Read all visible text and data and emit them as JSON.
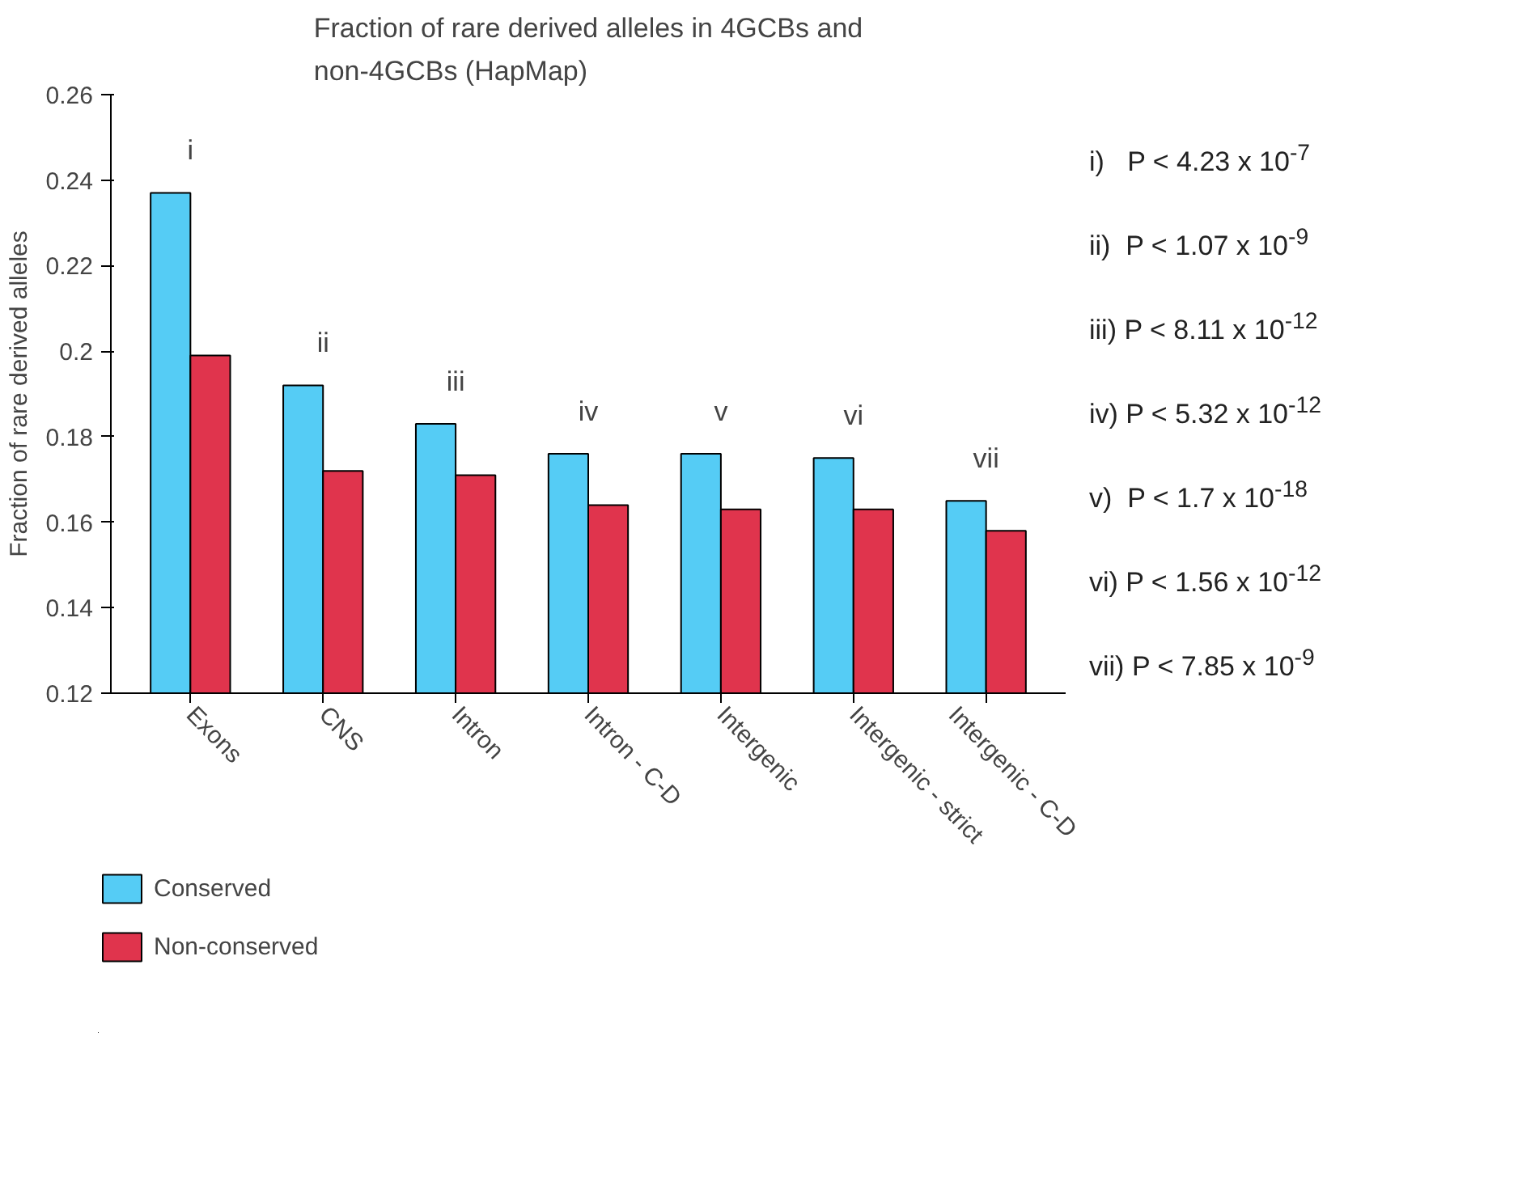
{
  "chart_data": {
    "type": "bar",
    "title": "Fraction of rare derived alleles in 4GCBs and\nnon-4GCBs (HapMap)",
    "ylabel": "Fraction of rare derived alleles",
    "categories": [
      "Exons",
      "CNS",
      "Intron",
      "Intron - C-D",
      "Intergenic",
      "Intergenic - strict",
      "Intergenic - C-D"
    ],
    "series": [
      {
        "name": "Conserved",
        "color": "#55ccf5",
        "values": [
          0.237,
          0.192,
          0.183,
          0.176,
          0.176,
          0.175,
          0.165
        ]
      },
      {
        "name": "Non-conserved",
        "color": "#e0344d",
        "values": [
          0.199,
          0.172,
          0.171,
          0.164,
          0.163,
          0.163,
          0.158
        ]
      }
    ],
    "ylim": [
      0.12,
      0.26
    ],
    "yticks": [
      0.12,
      0.14,
      0.16,
      0.18,
      {
        "value": 0.2,
        "label": "0.2"
      },
      0.22,
      0.24,
      0.26
    ],
    "grid": false,
    "legend": "bottom left",
    "annotations": [
      "i",
      "ii",
      "iii",
      "iv",
      "v",
      "vi",
      "vii",
      "i)   P < 4.23 x 10$^{-7}$",
      "ii)  P < 1.07 x 10$^{-9}$",
      "iii) P < 8.11 x 10$^{-12}$",
      "iv) P < 5.32 x 10$^{-12}$",
      "v)  P < 1.7 x 10$^{-18}$",
      "vi) P < 1.56 x 10$^{-12}$",
      "vii) P < 7.85 x 10$^{-9}$"
    ]
  }
}
